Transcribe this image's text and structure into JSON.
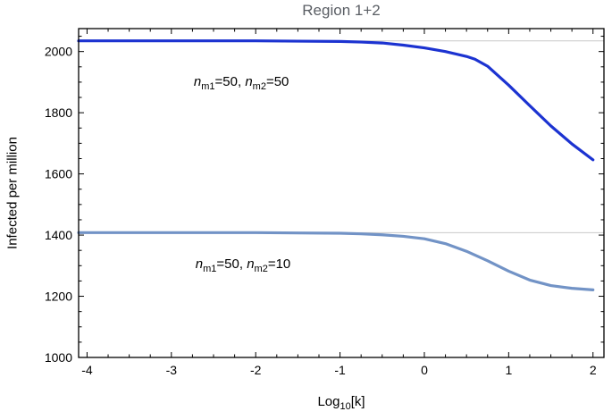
{
  "chart_data": {
    "type": "line",
    "title": "Region 1+2",
    "ylabel": "Infected per million",
    "xlabel_plain": "Log10[k]",
    "xlabel_segments": [
      {
        "t": "Log"
      },
      {
        "t": "10",
        "sub": true
      },
      {
        "t": "[k]"
      }
    ],
    "xlim": [
      -4.1,
      2.13
    ],
    "ylim": [
      1000,
      2075
    ],
    "x_ticks": [
      -4,
      -3,
      -2,
      -1,
      0,
      1,
      2
    ],
    "x_tick_labels": [
      "-4",
      "-3",
      "-2",
      "-1",
      "0",
      "1",
      "2"
    ],
    "y_ticks": [
      1000,
      1200,
      1400,
      1600,
      1800,
      2000
    ],
    "y_tick_labels": [
      "1000",
      "1200",
      "1400",
      "1600",
      "1800",
      "2000"
    ],
    "x_minor_step": 0.25,
    "y_minor_step": 50,
    "grid_on": true,
    "gridlines_y": [
      2035,
      1408
    ],
    "grid_color": "#c9c9c9",
    "frame_color": "#000000",
    "title_color": "#5a5e64",
    "series": [
      {
        "name": "nm1=50, nm2=50",
        "color": "#1c33d1",
        "width": 3.2,
        "points": [
          [
            -4.1,
            2035
          ],
          [
            -3.5,
            2035
          ],
          [
            -3.0,
            2035
          ],
          [
            -2.5,
            2035
          ],
          [
            -2.0,
            2035
          ],
          [
            -1.5,
            2034
          ],
          [
            -1.0,
            2033
          ],
          [
            -0.75,
            2031
          ],
          [
            -0.5,
            2028
          ],
          [
            -0.25,
            2021
          ],
          [
            0.0,
            2012
          ],
          [
            0.25,
            2000
          ],
          [
            0.5,
            1984
          ],
          [
            0.6,
            1975
          ],
          [
            0.75,
            1952
          ],
          [
            1.0,
            1890
          ],
          [
            1.25,
            1823
          ],
          [
            1.5,
            1757
          ],
          [
            1.75,
            1698
          ],
          [
            2.0,
            1646
          ]
        ]
      },
      {
        "name": "nm1=50, nm2=10",
        "color": "#7293c6",
        "width": 3.2,
        "points": [
          [
            -4.1,
            1408
          ],
          [
            -3.5,
            1408
          ],
          [
            -3.0,
            1408
          ],
          [
            -2.5,
            1408
          ],
          [
            -2.0,
            1408
          ],
          [
            -1.5,
            1407
          ],
          [
            -1.0,
            1406
          ],
          [
            -0.75,
            1404
          ],
          [
            -0.5,
            1401
          ],
          [
            -0.25,
            1396
          ],
          [
            0.0,
            1388
          ],
          [
            0.25,
            1372
          ],
          [
            0.5,
            1347
          ],
          [
            0.75,
            1316
          ],
          [
            1.0,
            1282
          ],
          [
            1.25,
            1253
          ],
          [
            1.5,
            1235
          ],
          [
            1.75,
            1226
          ],
          [
            2.0,
            1221
          ]
        ]
      }
    ],
    "annotations": [
      {
        "x": -2.17,
        "y": 1897,
        "plain": "nm1=50, nm2=50",
        "segments": [
          {
            "t": "n",
            "italic": true
          },
          {
            "t": "m1",
            "sub": true
          },
          {
            "t": "=50,  "
          },
          {
            "t": "n",
            "italic": true
          },
          {
            "t": "m2",
            "sub": true
          },
          {
            "t": "=50"
          }
        ]
      },
      {
        "x": -2.15,
        "y": 1301,
        "plain": "nm1=50, nm2=10",
        "segments": [
          {
            "t": "n",
            "italic": true
          },
          {
            "t": "m1",
            "sub": true
          },
          {
            "t": "=50,  "
          },
          {
            "t": "n",
            "italic": true
          },
          {
            "t": "m2",
            "sub": true
          },
          {
            "t": "=10"
          }
        ]
      }
    ],
    "legend_position": "none"
  }
}
